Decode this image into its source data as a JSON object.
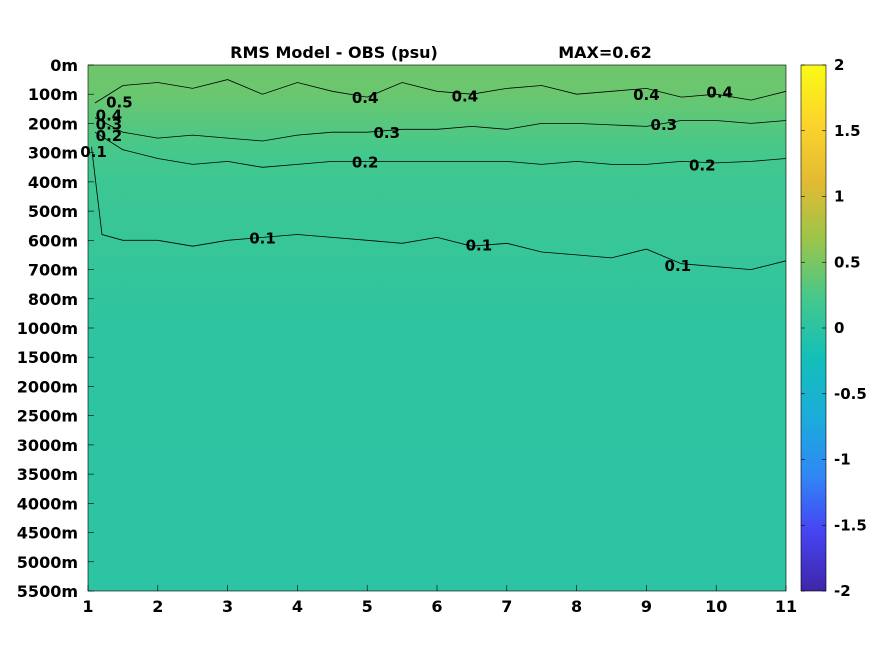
{
  "chart_data": {
    "type": "heatmap",
    "title": "RMS Model - OBS (psu)",
    "max_label": "MAX=0.62",
    "x_ticks": [
      "1",
      "2",
      "3",
      "4",
      "5",
      "6",
      "7",
      "8",
      "9",
      "10",
      "11"
    ],
    "x_range": [
      1,
      11
    ],
    "y_ticks": [
      "0m",
      "100m",
      "200m",
      "300m",
      "400m",
      "500m",
      "600m",
      "700m",
      "800m",
      "1000m",
      "1500m",
      "2000m",
      "2500m",
      "3000m",
      "3500m",
      "4000m",
      "4500m",
      "5000m",
      "5500m"
    ],
    "colorbar": {
      "range": [
        -2,
        2
      ],
      "ticks": [
        "2",
        "1.5",
        "1",
        "0.5",
        "0",
        "-0.5",
        "-1",
        "-1.5",
        "-2"
      ],
      "colormap": "parula",
      "stops": [
        "#3e26a8",
        "#4743f2",
        "#2f89f5",
        "#1aadda",
        "#14bfb8",
        "#44c88c",
        "#9ac54a",
        "#e3ba32",
        "#fcd42c",
        "#f9fb14"
      ]
    },
    "field_profile": {
      "depth_index": [
        0,
        1,
        2,
        3,
        4,
        5,
        6,
        7,
        8,
        9,
        10,
        18
      ],
      "value": [
        0.45,
        0.42,
        0.32,
        0.22,
        0.16,
        0.12,
        0.1,
        0.08,
        0.05,
        0.02,
        0.01,
        0.0
      ]
    },
    "contour_labels": [
      {
        "text": "0.5",
        "x": 1.45,
        "y": 1.3
      },
      {
        "text": "0.4",
        "x": 1.3,
        "y": 1.75
      },
      {
        "text": "0.3",
        "x": 1.3,
        "y": 2.05
      },
      {
        "text": "0.2",
        "x": 1.3,
        "y": 2.45
      },
      {
        "text": "0.1",
        "x": 1.08,
        "y": 3.0
      },
      {
        "text": "0.4",
        "x": 4.97,
        "y": 1.15
      },
      {
        "text": "0.4",
        "x": 6.4,
        "y": 1.1
      },
      {
        "text": "0.4",
        "x": 9.0,
        "y": 1.05
      },
      {
        "text": "0.4",
        "x": 10.05,
        "y": 0.95
      },
      {
        "text": "0.3",
        "x": 5.28,
        "y": 2.35
      },
      {
        "text": "0.3",
        "x": 9.25,
        "y": 2.07
      },
      {
        "text": "0.2",
        "x": 4.97,
        "y": 3.35
      },
      {
        "text": "0.2",
        "x": 9.8,
        "y": 3.45
      },
      {
        "text": "0.1",
        "x": 3.5,
        "y": 5.95
      },
      {
        "text": "0.1",
        "x": 6.6,
        "y": 6.2
      },
      {
        "text": "0.1",
        "x": 9.45,
        "y": 6.9
      }
    ],
    "contours": [
      {
        "level": "0.4",
        "x": [
          1.1,
          1.5,
          2.0,
          2.5,
          3.0,
          3.5,
          4.0,
          4.5,
          5.0,
          5.5,
          6.0,
          6.5,
          7.0,
          7.5,
          8.0,
          8.5,
          9.0,
          9.5,
          10.0,
          10.5,
          11.0
        ],
        "y": [
          1.3,
          0.7,
          0.6,
          0.8,
          0.5,
          1.0,
          0.6,
          0.9,
          1.1,
          0.6,
          0.9,
          1.0,
          0.8,
          0.7,
          1.0,
          0.9,
          0.8,
          1.1,
          1.0,
          1.2,
          0.9
        ]
      },
      {
        "level": "0.3",
        "x": [
          1.1,
          1.5,
          2.0,
          2.5,
          3.0,
          3.5,
          4.0,
          4.5,
          5.0,
          5.5,
          6.0,
          6.5,
          7.0,
          7.5,
          8.0,
          8.5,
          9.0,
          9.5,
          10.0,
          10.5,
          11.0
        ],
        "y": [
          1.8,
          2.3,
          2.5,
          2.4,
          2.5,
          2.6,
          2.4,
          2.3,
          2.3,
          2.2,
          2.2,
          2.1,
          2.2,
          2.0,
          2.0,
          2.05,
          2.1,
          1.9,
          1.9,
          2.0,
          1.9
        ]
      },
      {
        "level": "0.2",
        "x": [
          1.1,
          1.5,
          2.0,
          2.5,
          3.0,
          3.5,
          4.0,
          4.5,
          5.0,
          5.5,
          6.0,
          6.5,
          7.0,
          7.5,
          8.0,
          8.5,
          9.0,
          9.5,
          10.0,
          10.5,
          11.0
        ],
        "y": [
          2.3,
          2.9,
          3.2,
          3.4,
          3.3,
          3.5,
          3.4,
          3.3,
          3.3,
          3.3,
          3.3,
          3.3,
          3.3,
          3.4,
          3.3,
          3.4,
          3.4,
          3.3,
          3.35,
          3.3,
          3.2
        ]
      },
      {
        "level": "0.1",
        "x": [
          1.05,
          1.2,
          1.5,
          2.0,
          2.5,
          3.0,
          3.5,
          4.0,
          4.5,
          5.0,
          5.5,
          6.0,
          6.5,
          7.0,
          7.5,
          8.0,
          8.5,
          9.0,
          9.5,
          10.0,
          10.5,
          11.0
        ],
        "y": [
          2.8,
          5.8,
          6.0,
          6.0,
          6.2,
          6.0,
          5.9,
          5.8,
          5.9,
          6.0,
          6.1,
          5.9,
          6.2,
          6.1,
          6.4,
          6.5,
          6.6,
          6.3,
          6.8,
          6.9,
          7.0,
          6.7
        ]
      }
    ]
  }
}
